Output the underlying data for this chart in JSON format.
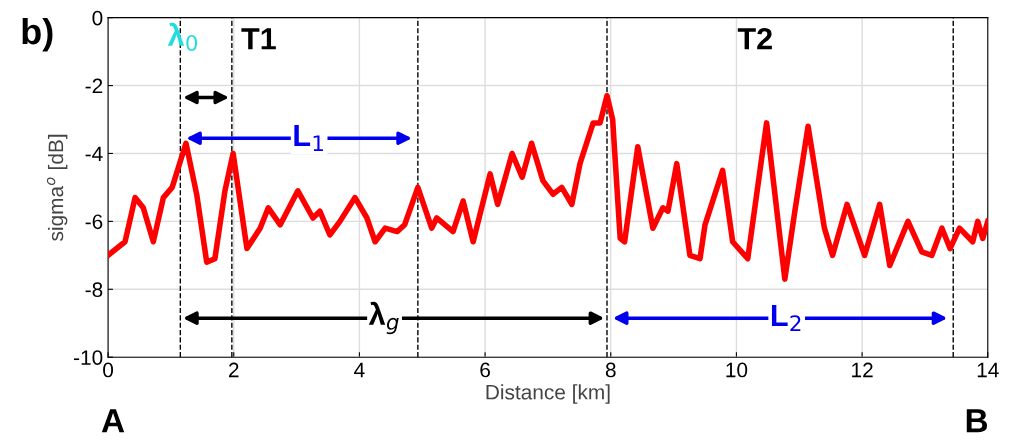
{
  "chart_data": {
    "type": "line",
    "title": "b)",
    "xlabel": "Distance [km]",
    "ylabel": "sigma$^{o}$ [dB]",
    "x": [
      0,
      0.27,
      0.43,
      0.56,
      0.72,
      0.88,
      1.02,
      1.24,
      1.41,
      1.57,
      1.7,
      1.86,
      1.99,
      2.21,
      2.42,
      2.55,
      2.74,
      3.02,
      3.26,
      3.37,
      3.53,
      3.69,
      3.93,
      4.12,
      4.25,
      4.41,
      4.6,
      4.72,
      4.93,
      5.15,
      5.23,
      5.49,
      5.65,
      5.81,
      6.08,
      6.2,
      6.43,
      6.59,
      6.74,
      6.92,
      7.08,
      7.22,
      7.38,
      7.51,
      7.72,
      7.83,
      7.94,
      8.03,
      8.15,
      8.22,
      8.43,
      8.67,
      8.83,
      8.91,
      9.05,
      9.26,
      9.42,
      9.5,
      9.78,
      9.94,
      10.18,
      10.48,
      10.77,
      10.93,
      11.14,
      11.4,
      11.53,
      11.76,
      12.04,
      12.28,
      12.44,
      12.73,
      12.95,
      13.11,
      13.27,
      13.4,
      13.55,
      13.76,
      13.84,
      13.92,
      14.0
    ],
    "series": [
      {
        "color": "#ff0000",
        "values": [
          -7.0,
          -6.6,
          -5.3,
          -5.6,
          -6.6,
          -5.3,
          -5.0,
          -3.7,
          -5.2,
          -7.2,
          -7.1,
          -5.1,
          -4.0,
          -6.8,
          -6.2,
          -5.6,
          -6.1,
          -5.1,
          -5.9,
          -5.7,
          -6.4,
          -6.0,
          -5.3,
          -5.9,
          -6.6,
          -6.2,
          -6.3,
          -6.1,
          -5.0,
          -6.2,
          -5.9,
          -6.3,
          -5.4,
          -6.6,
          -4.6,
          -5.5,
          -4.0,
          -4.7,
          -3.7,
          -4.8,
          -5.2,
          -5.0,
          -5.5,
          -4.3,
          -3.1,
          -3.1,
          -2.3,
          -3.0,
          -6.5,
          -6.6,
          -3.8,
          -6.2,
          -5.6,
          -5.7,
          -4.3,
          -7.0,
          -7.1,
          -6.1,
          -4.5,
          -6.6,
          -7.1,
          -3.1,
          -7.7,
          -5.7,
          -3.2,
          -6.2,
          -7.0,
          -5.5,
          -7.0,
          -5.5,
          -7.3,
          -6.0,
          -6.9,
          -7.0,
          -6.2,
          -6.8,
          -6.2,
          -6.6,
          -6.0,
          -6.5,
          -6.0
        ]
      }
    ],
    "xlim": [
      0,
      14
    ],
    "xticks": [
      0,
      2,
      4,
      6,
      8,
      10,
      12,
      14
    ],
    "ylim": [
      -10,
      0
    ],
    "yticks": [
      -10,
      -8,
      -6,
      -4,
      -2,
      0
    ],
    "grid": true,
    "line_style": "solid",
    "marker": "none",
    "ref_lines": [
      {
        "axis": "x",
        "value": 1.15,
        "color": "#000000",
        "line_style": "dashed"
      },
      {
        "axis": "x",
        "value": 1.97,
        "color": "#000000",
        "line_style": "dashed"
      },
      {
        "axis": "x",
        "value": 4.93,
        "color": "#000000",
        "line_style": "dashed"
      },
      {
        "axis": "x",
        "value": 7.94,
        "color": "#000000",
        "line_style": "dashed"
      },
      {
        "axis": "x",
        "value": 13.45,
        "color": "#000000",
        "line_style": "dashed"
      }
    ],
    "annotations": [
      "T1",
      "T2",
      "λ$_{0}$",
      "L$_{1}$",
      "λ$_{g}$",
      "L$_{2}$",
      "A",
      "B"
    ]
  }
}
